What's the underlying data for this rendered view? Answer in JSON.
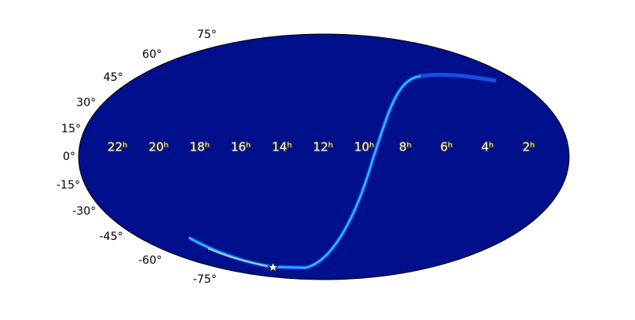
{
  "lat_labels": [
    "75°",
    "60°",
    "45°",
    "30°",
    "15°",
    "0°",
    "-15°",
    "-30°",
    "-45°",
    "-60°",
    "-75°"
  ],
  "ra_labels": [
    "22ʰ",
    "20ʰ",
    "18ʰ",
    "16ʰ",
    "14ʰ",
    "12ʰ",
    "10ʰ",
    "8ʰ",
    "6ʰ",
    "4ʰ",
    "2ʰ"
  ]
}
